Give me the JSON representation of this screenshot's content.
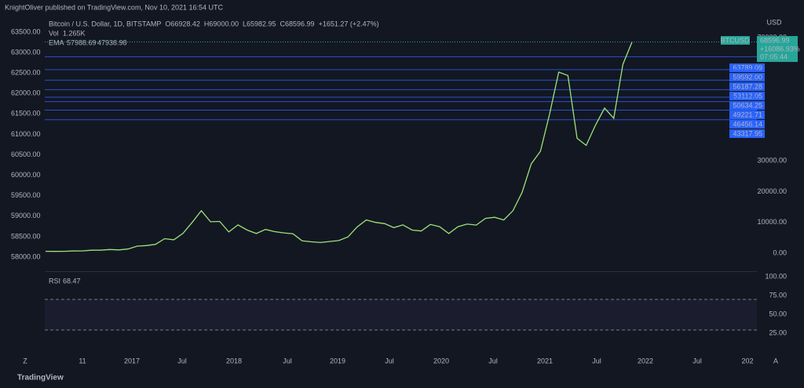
{
  "header": {
    "publisher": "KnightOliver published on TradingView.com, Nov 10, 2021 16:54 UTC"
  },
  "legend": {
    "symbol": "Bitcoin / U.S. Dollar, 1D, BITSTAMP",
    "open": "O66928.42",
    "high": "H69000.00",
    "low": "L65982.95",
    "close": "C68596.99",
    "change": "+1651.27 (+2.47%)",
    "volume_label": "Vol",
    "volume": "1.265K",
    "ema_label": "EMA",
    "ema_fast": "57988.69",
    "ema_slow": "47938.98"
  },
  "price_axis": {
    "currency": "USD",
    "ticks": [
      {
        "value": 70000,
        "label": "70000.00"
      },
      {
        "value": 30000,
        "label": "30000.00"
      },
      {
        "value": 20000,
        "label": "20000.00"
      },
      {
        "value": 10000,
        "label": "10000.00"
      },
      {
        "value": 0,
        "label": "0.00"
      }
    ]
  },
  "left_axis": {
    "ticks": [
      {
        "value": 63500,
        "label": "63500.00"
      },
      {
        "value": 63000,
        "label": "63000.00"
      },
      {
        "value": 62500,
        "label": "62500.00"
      },
      {
        "value": 62000,
        "label": "62000.00"
      },
      {
        "value": 61500,
        "label": "61500.00"
      },
      {
        "value": 61000,
        "label": "61000.00"
      },
      {
        "value": 60500,
        "label": "60500.00"
      },
      {
        "value": 60000,
        "label": "60000.00"
      },
      {
        "value": 59500,
        "label": "59500.00"
      },
      {
        "value": 59000,
        "label": "59000.00"
      },
      {
        "value": 58500,
        "label": "58500.00"
      },
      {
        "value": 58000,
        "label": "58000.00"
      }
    ]
  },
  "levels": [
    {
      "value": 63789.09,
      "label": "63789.09"
    },
    {
      "value": 59592,
      "label": "59592.00"
    },
    {
      "value": 56187.28,
      "label": "56187.28"
    },
    {
      "value": 53112.05,
      "label": "53112.05"
    },
    {
      "value": 50634.25,
      "label": "50634.25"
    },
    {
      "value": 49221.71,
      "label": "49221.71"
    },
    {
      "value": 46456.14,
      "label": "46456.14"
    },
    {
      "value": 43317.95,
      "label": "43317.95"
    }
  ],
  "price_tag": {
    "symbol": "BTCUSD",
    "price": {
      "value": 68596.99,
      "label": "68596.99"
    },
    "change": "+16086.93%",
    "countdown": "07:05:44"
  },
  "time_axis": [
    "11",
    "2017",
    "Jul",
    "2018",
    "Jul",
    "2019",
    "Jul",
    "2020",
    "Jul",
    "2021",
    "Jul",
    "2022",
    "Jul",
    "202"
  ],
  "close_prices": [
    620,
    575,
    610,
    700,
    740,
    960,
    970,
    1190,
    1080,
    1350,
    2300,
    2480,
    2870,
    4700,
    4340,
    6450,
    10000,
    13800,
    10200,
    10300,
    6900,
    9200,
    7500,
    6400,
    7700,
    7000,
    6600,
    6300,
    4000,
    3700,
    3450,
    3800,
    4100,
    5300,
    8500,
    10800,
    10000,
    9600,
    8300,
    9200,
    7500,
    7200,
    9350,
    8600,
    6400,
    8600,
    9450,
    9140,
    11300,
    11650,
    10780,
    13800,
    19700,
    29000,
    33100,
    45200,
    58800,
    57700,
    37300,
    35000,
    41500,
    47100,
    43800,
    61300,
    68597
  ],
  "rsi": {
    "label": "RSI",
    "value": "68.47",
    "ticks": [
      {
        "value": 100,
        "label": "100.00"
      },
      {
        "value": 75,
        "label": "75.00"
      },
      {
        "value": 50,
        "label": "50.00"
      },
      {
        "value": 25,
        "label": "25.00"
      }
    ]
  },
  "footer": {
    "brand": "TradingView",
    "zoom": "Z",
    "auto": "A"
  }
}
